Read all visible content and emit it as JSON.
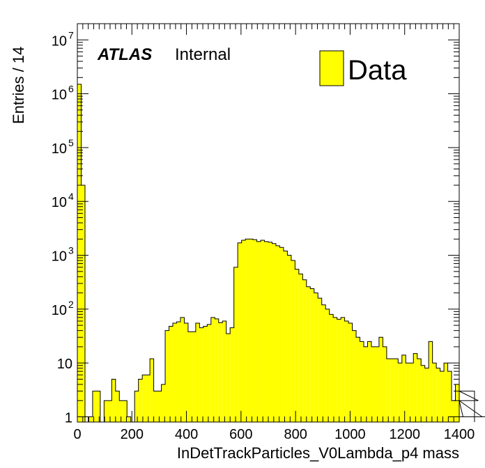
{
  "chart_data": {
    "type": "histogram",
    "xlabel": "InDetTrackParticles_V0Lambda_p4 mass",
    "ylabel": "Entries / 14",
    "bin_width": 14,
    "xlim": [
      0,
      1400
    ],
    "ylim": [
      0.8,
      20000000
    ],
    "yscale": "log",
    "x_ticks": [
      0,
      200,
      400,
      600,
      800,
      1000,
      1200,
      1400
    ],
    "x_tick_labels": [
      "0",
      "200",
      "400",
      "600",
      "800",
      "1000",
      "1200",
      "1400"
    ],
    "y_ticks": [
      1,
      10,
      100,
      1000,
      10000,
      100000,
      1000000,
      10000000
    ],
    "y_tick_base": [
      "1",
      "10",
      "10",
      "10",
      "10",
      "10",
      "10",
      "10"
    ],
    "y_tick_exp": [
      "",
      "",
      "2",
      "3",
      "4",
      "5",
      "6",
      "7"
    ],
    "label_main": "ATLAS",
    "label_sub": "Internal",
    "legend": {
      "label": "Data",
      "placement": "top-right"
    },
    "colors": {
      "fill": "#ffff00",
      "line": "#000000"
    },
    "series": [
      {
        "name": "Data",
        "values": [
          1500000,
          20000,
          0,
          1,
          3,
          3,
          0,
          2,
          2,
          5,
          3,
          2,
          2,
          1,
          0,
          3,
          5,
          6,
          6,
          12,
          3,
          3,
          4,
          40,
          48,
          55,
          58,
          70,
          55,
          38,
          38,
          55,
          45,
          48,
          52,
          70,
          66,
          56,
          60,
          35,
          45,
          600,
          1700,
          1900,
          2000,
          2000,
          1950,
          1800,
          1900,
          1800,
          1750,
          1650,
          1500,
          1400,
          1200,
          1000,
          800,
          550,
          450,
          350,
          260,
          240,
          200,
          160,
          120,
          100,
          80,
          70,
          65,
          70,
          60,
          55,
          40,
          30,
          25,
          20,
          25,
          20,
          20,
          30,
          20,
          12,
          12,
          12,
          10,
          14,
          10,
          10,
          15,
          12,
          9,
          8,
          25,
          10,
          8,
          7,
          10,
          7,
          2,
          4,
          2,
          1,
          0,
          0,
          3,
          2,
          1,
          0,
          0,
          1,
          0,
          0,
          0,
          0
        ]
      }
    ]
  }
}
